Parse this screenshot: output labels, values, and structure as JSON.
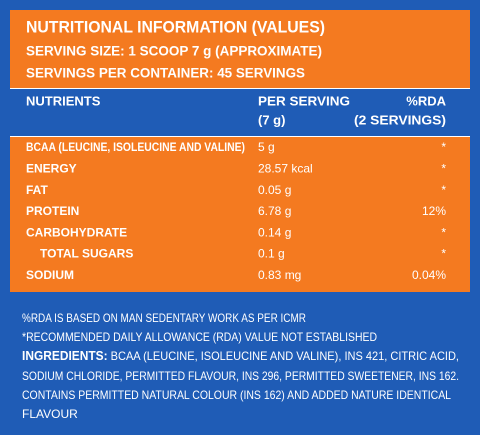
{
  "header": {
    "title": "NUTRITIONAL INFORMATION (VALUES)",
    "serving_size": "SERVING SIZE: 1 SCOOP 7 g (APPROXIMATE)",
    "servings_per_container": "SERVINGS PER CONTAINER: 45 SERVINGS"
  },
  "table": {
    "columns": [
      [
        "NUTRIENTS"
      ],
      [
        "PER SERVING",
        "(7 g)"
      ],
      [
        "%RDA",
        "(2 SERVINGS)"
      ]
    ],
    "rows": [
      [
        "BCAA (LEUCINE, ISOLEUCINE AND VALINE)",
        "5 g",
        "*"
      ],
      [
        "ENERGY",
        "28.57 kcal",
        "*"
      ],
      [
        "FAT",
        "0.05 g",
        "*"
      ],
      [
        "PROTEIN",
        "6.78 g",
        "12%"
      ],
      [
        "CARBOHYDRATE",
        "0.14 g",
        "*"
      ],
      [
        "TOTAL SUGARS",
        "0.1 g",
        "*"
      ],
      [
        "SODIUM",
        "0.83 mg",
        "0.04%"
      ]
    ]
  },
  "footer": {
    "notes": [
      "%RDA IS BASED ON MAN SEDENTARY WORK AS PER ICMR",
      "*RECOMMENDED DAILY ALLOWANCE (RDA) VALUE NOT ESTABLISHED"
    ],
    "ingredients_label": "INGREDIENTS:",
    "ingredients_lines": [
      " BCAA (LEUCINE, ISOLEUCINE AND VALINE), INS 421, CITRIC ACID,",
      "SODIUM CHLORIDE, PERMITTED FLAVOUR, INS 296,  PERMITTED SWEETENER, INS 162.",
      "CONTAINS PERMITTED NATURAL COLOUR (INS 162) AND ADDED NATURE IDENTICAL",
      "FLAVOUR"
    ]
  }
}
